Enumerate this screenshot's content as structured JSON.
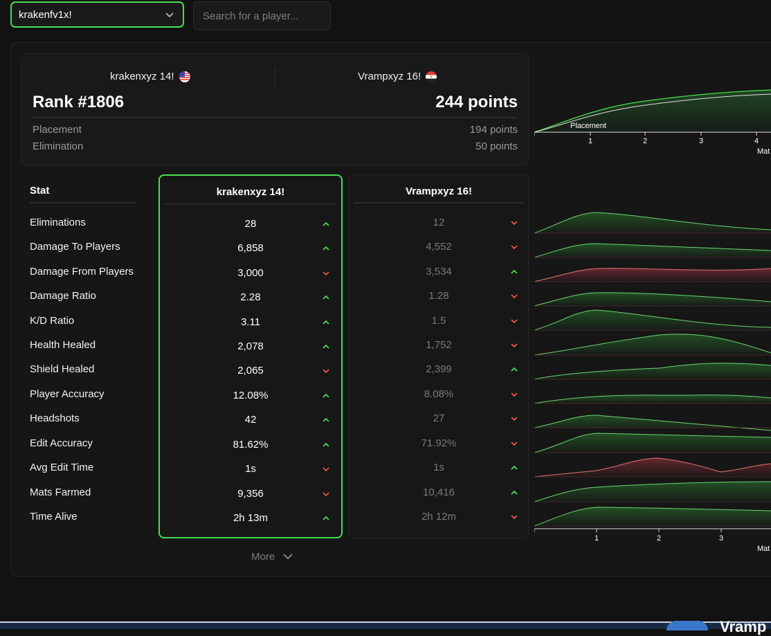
{
  "selector": {
    "value": "krakenfv1x!"
  },
  "search": {
    "placeholder": "Search for a player..."
  },
  "summary": {
    "player1": "krakenxyz 14!",
    "player2": "Vrampxyz 16!",
    "rank": "Rank #1806",
    "total_points": "244 points",
    "rows": [
      {
        "label": "Placement",
        "value": "194 points"
      },
      {
        "label": "Elimination",
        "value": "50 points"
      }
    ]
  },
  "stats": {
    "header": "Stat",
    "col1_title": "krakenxyz 14!",
    "col2_title": "Vrampxyz 16!",
    "rows": [
      {
        "label": "Eliminations",
        "v1": "28",
        "d1": "up",
        "v2": "12",
        "d2": "down"
      },
      {
        "label": "Damage To Players",
        "v1": "6,858",
        "d1": "up",
        "v2": "4,552",
        "d2": "down"
      },
      {
        "label": "Damage From Players",
        "v1": "3,000",
        "d1": "down",
        "v2": "3,534",
        "d2": "up"
      },
      {
        "label": "Damage Ratio",
        "v1": "2.28",
        "d1": "up",
        "v2": "1.28",
        "d2": "down"
      },
      {
        "label": "K/D Ratio",
        "v1": "3.11",
        "d1": "up",
        "v2": "1.5",
        "d2": "down"
      },
      {
        "label": "Health Healed",
        "v1": "2,078",
        "d1": "up",
        "v2": "1,752",
        "d2": "down"
      },
      {
        "label": "Shield Healed",
        "v1": "2,065",
        "d1": "down",
        "v2": "2,399",
        "d2": "up"
      },
      {
        "label": "Player Accuracy",
        "v1": "12.08%",
        "d1": "up",
        "v2": "8.08%",
        "d2": "down"
      },
      {
        "label": "Headshots",
        "v1": "42",
        "d1": "up",
        "v2": "27",
        "d2": "down"
      },
      {
        "label": "Edit Accuracy",
        "v1": "81.62%",
        "d1": "up",
        "v2": "71.92%",
        "d2": "down"
      },
      {
        "label": "Avg Edit Time",
        "v1": "1s",
        "d1": "down",
        "v2": "1s",
        "d2": "up"
      },
      {
        "label": "Mats Farmed",
        "v1": "9,356",
        "d1": "down",
        "v2": "10,416",
        "d2": "up"
      },
      {
        "label": "Time Alive",
        "v1": "2h 13m",
        "d1": "up",
        "v2": "2h 12m",
        "d2": "down"
      }
    ]
  },
  "more_label": "More",
  "top_chart": {
    "annotation": "Placement",
    "x_ticks": [
      "1",
      "2",
      "3",
      "4"
    ],
    "x_label": "Mat"
  },
  "bottom_chart": {
    "x_ticks": [
      "1",
      "2",
      "3"
    ],
    "x_label": "Mat"
  },
  "bottom_text": "Vramp",
  "colors": {
    "accent": "#4ade50",
    "up": "#4ade50",
    "down": "#ef5350",
    "area_green": "#2e7d32"
  }
}
